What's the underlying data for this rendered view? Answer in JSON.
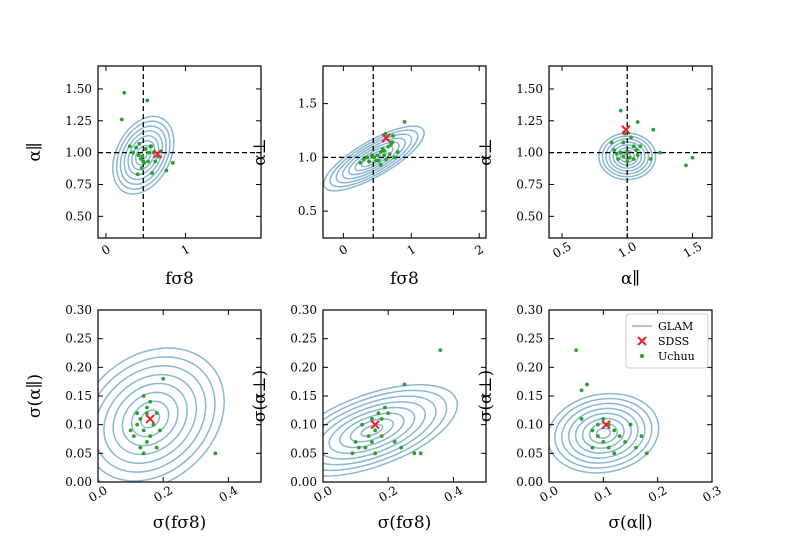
{
  "colors": {
    "glam": "#8ab7d2",
    "sdss": "#e3262a",
    "uchuu": "#2ca02c",
    "axis": "#000000"
  },
  "legend": {
    "entries": [
      "GLAM",
      "SDSS",
      "Uchuu"
    ],
    "placement": "top-right of bottom-right panel"
  },
  "chart_data": [
    {
      "type": "scatter",
      "panel": "top-left",
      "xlabel": "fσ8",
      "ylabel": "α∥",
      "xlim": [
        -0.1,
        1.95
      ],
      "ylim": [
        0.33,
        1.68
      ],
      "xticks": [
        0,
        1
      ],
      "yticks": [
        0.5,
        0.75,
        1.0,
        1.25,
        1.5
      ],
      "xtick_labels": [
        "0",
        "1"
      ],
      "ytick_labels": [
        "0.50",
        "0.75",
        "1.00",
        "1.25",
        "1.50"
      ],
      "xtick_rotation": 30,
      "reference_lines": {
        "x": 0.47,
        "y": 1.0
      },
      "sdss": [
        0.65,
        0.99
      ],
      "uchuu": [
        [
          0.23,
          1.47
        ],
        [
          0.52,
          1.41
        ],
        [
          0.2,
          1.26
        ],
        [
          0.3,
          1.05
        ],
        [
          0.34,
          1.0
        ],
        [
          0.38,
          1.04
        ],
        [
          0.41,
          0.98
        ],
        [
          0.44,
          0.95
        ],
        [
          0.46,
          0.97
        ],
        [
          0.5,
          1.03
        ],
        [
          0.54,
          1.0
        ],
        [
          0.57,
          1.05
        ],
        [
          0.6,
          1.0
        ],
        [
          0.62,
          0.93
        ],
        [
          0.48,
          0.92
        ],
        [
          0.45,
          0.88
        ],
        [
          0.53,
          0.93
        ],
        [
          0.58,
          0.84
        ],
        [
          0.66,
          0.97
        ],
        [
          0.69,
          1.01
        ],
        [
          0.84,
          0.92
        ],
        [
          0.76,
          0.86
        ],
        [
          0.4,
          0.83
        ],
        [
          0.56,
          1.05
        ],
        [
          0.47,
          0.93
        ],
        [
          0.42,
          1.07
        ]
      ],
      "glam_contours": {
        "center": [
          0.47,
          0.98
        ],
        "rx": 0.4,
        "ry": 0.26,
        "rotation_deg": -63,
        "levels": 8
      }
    },
    {
      "type": "scatter",
      "panel": "top-middle",
      "xlabel": "fσ8",
      "ylabel": "α⊥",
      "xlim": [
        -0.3,
        2.1
      ],
      "ylim": [
        0.25,
        1.85
      ],
      "xticks": [
        0,
        1,
        2
      ],
      "yticks": [
        0.5,
        1.0,
        1.5
      ],
      "xtick_labels": [
        "0",
        "1",
        "2"
      ],
      "ytick_labels": [
        "0.5",
        "1.0",
        "1.5"
      ],
      "xtick_rotation": 30,
      "reference_lines": {
        "x": 0.44,
        "y": 1.0
      },
      "sdss": [
        0.63,
        1.18
      ],
      "uchuu": [
        [
          0.25,
          0.95
        ],
        [
          0.3,
          0.98
        ],
        [
          0.35,
          1.0
        ],
        [
          0.38,
          0.96
        ],
        [
          0.42,
          1.02
        ],
        [
          0.45,
          1.0
        ],
        [
          0.5,
          1.02
        ],
        [
          0.52,
          0.97
        ],
        [
          0.55,
          1.05
        ],
        [
          0.58,
          1.08
        ],
        [
          0.6,
          1.02
        ],
        [
          0.63,
          0.98
        ],
        [
          0.66,
          1.1
        ],
        [
          0.68,
          1.03
        ],
        [
          0.7,
          1.12
        ],
        [
          0.73,
          1.2
        ],
        [
          0.75,
          1.0
        ],
        [
          0.8,
          1.05
        ],
        [
          0.9,
          1.33
        ],
        [
          0.62,
          1.22
        ],
        [
          0.55,
          0.93
        ],
        [
          0.48,
          0.97
        ],
        [
          0.72,
          1.14
        ],
        [
          0.6,
          1.06
        ]
      ],
      "glam_contours": {
        "center": [
          0.45,
          0.99
        ],
        "rx": 0.65,
        "ry": 0.2,
        "rotation_deg": -30,
        "levels": 8
      }
    },
    {
      "type": "scatter",
      "panel": "top-right",
      "xlabel": "α∥",
      "ylabel": "α⊥",
      "xlim": [
        0.4,
        1.65
      ],
      "ylim": [
        0.33,
        1.68
      ],
      "xticks": [
        0.5,
        1.0,
        1.5
      ],
      "yticks": [
        0.5,
        0.75,
        1.0,
        1.25,
        1.5
      ],
      "xtick_labels": [
        "0.5",
        "1.0",
        "1.5"
      ],
      "ytick_labels": [
        "0.50",
        "0.75",
        "1.00",
        "1.25",
        "1.50"
      ],
      "xtick_rotation": 30,
      "reference_lines": {
        "x": 1.0,
        "y": 1.0
      },
      "sdss": [
        0.99,
        1.18
      ],
      "uchuu": [
        [
          0.95,
          1.33
        ],
        [
          1.08,
          1.24
        ],
        [
          0.88,
          1.08
        ],
        [
          0.9,
          1.02
        ],
        [
          0.92,
          0.99
        ],
        [
          0.95,
          1.0
        ],
        [
          0.97,
          0.97
        ],
        [
          1.0,
          1.0
        ],
        [
          1.02,
          0.96
        ],
        [
          1.05,
          0.95
        ],
        [
          1.07,
          1.02
        ],
        [
          1.0,
          0.93
        ],
        [
          0.97,
          1.08
        ],
        [
          1.03,
          1.12
        ],
        [
          1.08,
          0.98
        ],
        [
          1.1,
          1.05
        ],
        [
          1.2,
          1.18
        ],
        [
          1.25,
          1.0
        ],
        [
          1.5,
          0.96
        ],
        [
          1.45,
          0.9
        ],
        [
          1.18,
          0.95
        ],
        [
          0.98,
          1.15
        ],
        [
          1.05,
          1.05
        ],
        [
          0.93,
          0.95
        ]
      ],
      "glam_contours": {
        "center": [
          1.0,
          0.97
        ],
        "rx": 0.22,
        "ry": 0.18,
        "rotation_deg": 0,
        "levels": 8
      }
    },
    {
      "type": "scatter",
      "panel": "bottom-left",
      "xlabel": "σ(fσ8)",
      "ylabel": "σ(α∥)",
      "xlim": [
        0.0,
        0.5
      ],
      "ylim": [
        0.0,
        0.3
      ],
      "xticks": [
        0.0,
        0.2,
        0.4
      ],
      "yticks": [
        0.0,
        0.05,
        0.1,
        0.15,
        0.2,
        0.25,
        0.3
      ],
      "xtick_labels": [
        "0.0",
        "0.2",
        "0.4"
      ],
      "ytick_labels": [
        "0.00",
        "0.05",
        "0.10",
        "0.15",
        "0.20",
        "0.25",
        "0.30"
      ],
      "xtick_rotation": 30,
      "sdss": [
        0.16,
        0.11
      ],
      "uchuu": [
        [
          0.2,
          0.18
        ],
        [
          0.14,
          0.15
        ],
        [
          0.16,
          0.14
        ],
        [
          0.18,
          0.12
        ],
        [
          0.15,
          0.13
        ],
        [
          0.12,
          0.12
        ],
        [
          0.13,
          0.11
        ],
        [
          0.17,
          0.1
        ],
        [
          0.14,
          0.09
        ],
        [
          0.1,
          0.09
        ],
        [
          0.11,
          0.08
        ],
        [
          0.15,
          0.07
        ],
        [
          0.13,
          0.06
        ],
        [
          0.14,
          0.05
        ],
        [
          0.18,
          0.06
        ],
        [
          0.16,
          0.08
        ],
        [
          0.12,
          0.1
        ],
        [
          0.19,
          0.09
        ],
        [
          0.36,
          0.05
        ],
        [
          0.15,
          0.12
        ]
      ],
      "glam_contours": {
        "center": [
          0.16,
          0.11
        ],
        "rx": 0.18,
        "ry": 0.14,
        "rotation_deg": -40,
        "levels": 8
      }
    },
    {
      "type": "scatter",
      "panel": "bottom-middle",
      "xlabel": "σ(fσ8)",
      "ylabel": "σ(α⊥)",
      "xlim": [
        0.0,
        0.5
      ],
      "ylim": [
        0.0,
        0.3
      ],
      "xticks": [
        0.0,
        0.2,
        0.4
      ],
      "yticks": [
        0.0,
        0.05,
        0.1,
        0.15,
        0.2,
        0.25,
        0.3
      ],
      "xtick_labels": [
        "0.0",
        "0.2",
        "0.4"
      ],
      "ytick_labels": [
        "0.00",
        "0.05",
        "0.10",
        "0.15",
        "0.20",
        "0.25",
        "0.30"
      ],
      "xtick_rotation": 30,
      "sdss": [
        0.16,
        0.1
      ],
      "uchuu": [
        [
          0.36,
          0.23
        ],
        [
          0.25,
          0.17
        ],
        [
          0.17,
          0.12
        ],
        [
          0.18,
          0.11
        ],
        [
          0.2,
          0.12
        ],
        [
          0.15,
          0.11
        ],
        [
          0.12,
          0.1
        ],
        [
          0.16,
          0.09
        ],
        [
          0.18,
          0.08
        ],
        [
          0.14,
          0.08
        ],
        [
          0.1,
          0.07
        ],
        [
          0.11,
          0.06
        ],
        [
          0.13,
          0.06
        ],
        [
          0.16,
          0.05
        ],
        [
          0.22,
          0.07
        ],
        [
          0.24,
          0.06
        ],
        [
          0.28,
          0.05
        ],
        [
          0.3,
          0.05
        ],
        [
          0.09,
          0.05
        ],
        [
          0.19,
          0.13
        ],
        [
          0.15,
          0.07
        ]
      ],
      "glam_contours": {
        "center": [
          0.15,
          0.09
        ],
        "rx": 0.2,
        "ry": 0.08,
        "rotation_deg": -20,
        "levels": 8
      }
    },
    {
      "type": "scatter",
      "panel": "bottom-right",
      "xlabel": "σ(α∥)",
      "ylabel": "σ(α⊥)",
      "xlim": [
        0.0,
        0.3
      ],
      "ylim": [
        0.0,
        0.3
      ],
      "xticks": [
        0.0,
        0.1,
        0.2,
        0.3
      ],
      "yticks": [
        0.0,
        0.05,
        0.1,
        0.15,
        0.2,
        0.25,
        0.3
      ],
      "xtick_labels": [
        "0.0",
        "0.1",
        "0.2",
        "0.3"
      ],
      "ytick_labels": [
        "0.00",
        "0.05",
        "0.10",
        "0.15",
        "0.20",
        "0.25",
        "0.30"
      ],
      "xtick_rotation": 30,
      "sdss": [
        0.105,
        0.1
      ],
      "uchuu": [
        [
          0.05,
          0.23
        ],
        [
          0.07,
          0.17
        ],
        [
          0.06,
          0.16
        ],
        [
          0.1,
          0.11
        ],
        [
          0.11,
          0.1
        ],
        [
          0.08,
          0.09
        ],
        [
          0.09,
          0.08
        ],
        [
          0.12,
          0.09
        ],
        [
          0.13,
          0.08
        ],
        [
          0.1,
          0.07
        ],
        [
          0.11,
          0.06
        ],
        [
          0.14,
          0.07
        ],
        [
          0.16,
          0.06
        ],
        [
          0.17,
          0.08
        ],
        [
          0.18,
          0.05
        ],
        [
          0.08,
          0.06
        ],
        [
          0.12,
          0.05
        ],
        [
          0.06,
          0.11
        ],
        [
          0.15,
          0.1
        ],
        [
          0.09,
          0.1
        ]
      ],
      "glam_contours": {
        "center": [
          0.1,
          0.085
        ],
        "rx": 0.1,
        "ry": 0.07,
        "rotation_deg": -10,
        "levels": 8
      }
    }
  ]
}
